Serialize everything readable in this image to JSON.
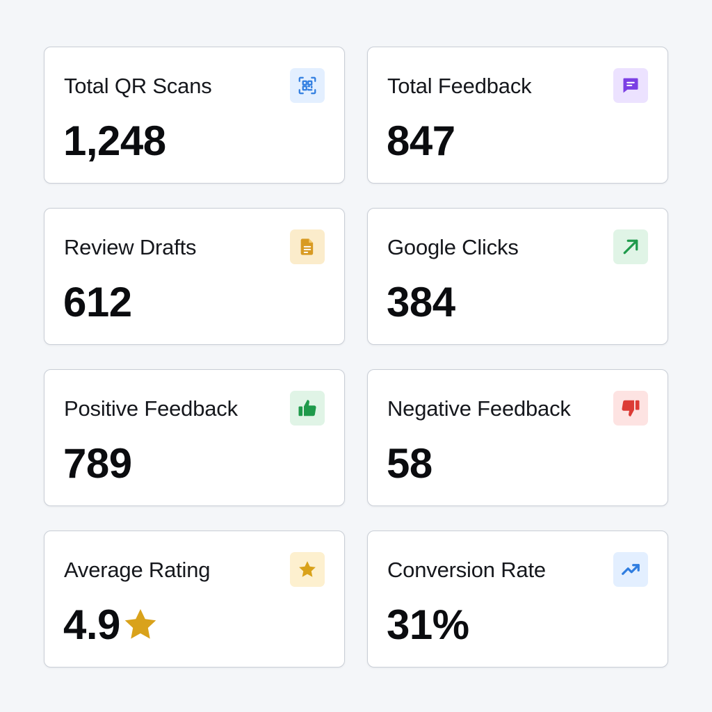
{
  "cards": [
    {
      "title": "Total QR Scans",
      "value": "1,248",
      "icon": "qr-code-icon",
      "icon_color": "#2f7de0",
      "icon_bg": "#e3efff"
    },
    {
      "title": "Total Feedback",
      "value": "847",
      "icon": "message-icon",
      "icon_color": "#7b3fe4",
      "icon_bg": "#ece2ff"
    },
    {
      "title": "Review Drafts",
      "value": "612",
      "icon": "document-icon",
      "icon_color": "#d89a22",
      "icon_bg": "#fbeccb"
    },
    {
      "title": "Google Clicks",
      "value": "384",
      "icon": "arrow-up-right-icon",
      "icon_color": "#1f9a4b",
      "icon_bg": "#e0f4e6"
    },
    {
      "title": "Positive Feedback",
      "value": "789",
      "icon": "thumbs-up-icon",
      "icon_color": "#1f9a4b",
      "icon_bg": "#e0f4e6"
    },
    {
      "title": "Negative Feedback",
      "value": "58",
      "icon": "thumbs-down-icon",
      "icon_color": "#dc3b35",
      "icon_bg": "#fde3e2"
    },
    {
      "title": "Average Rating",
      "value": "4.9",
      "icon": "star-icon",
      "icon_color": "#d9a21b",
      "icon_bg": "#fdf0cf",
      "value_icon": "star-icon",
      "value_icon_color": "#d9a21b"
    },
    {
      "title": "Conversion Rate",
      "value": "31%",
      "icon": "trending-up-icon",
      "icon_color": "#2f7de0",
      "icon_bg": "#e3efff"
    }
  ]
}
